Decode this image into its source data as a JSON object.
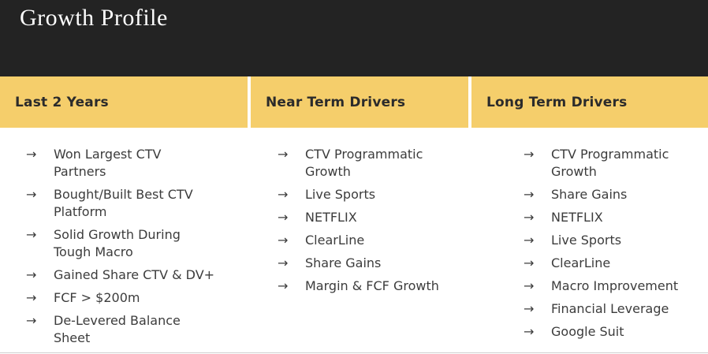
{
  "slide": {
    "title": "Growth Profile"
  },
  "theme": {
    "band_color": "#232323",
    "accent_gold": "#F5CE6B",
    "header_text_color": "#2B2B2B",
    "body_text_color": "#3C3C3C",
    "background": "#FFFFFF",
    "title_text_color": "#FDFDFD"
  },
  "icons": {
    "arrow_right": "→"
  },
  "columns": [
    {
      "header": "Last 2 Years",
      "items": [
        {
          "lines": [
            "Won Largest CTV",
            "Partners"
          ]
        },
        {
          "lines": [
            "Bought/Built Best CTV",
            "Platform"
          ]
        },
        {
          "lines": [
            "Solid Growth During",
            "Tough Macro"
          ]
        },
        {
          "lines": [
            "Gained Share CTV & DV+"
          ]
        },
        {
          "lines": [
            "FCF > $200m"
          ]
        },
        {
          "lines": [
            "De-Levered Balance",
            "Sheet"
          ]
        }
      ]
    },
    {
      "header": "Near Term Drivers",
      "items": [
        {
          "lines": [
            "CTV Programmatic",
            "Growth"
          ]
        },
        {
          "lines": [
            "Live Sports"
          ]
        },
        {
          "lines": [
            "NETFLIX"
          ]
        },
        {
          "lines": [
            "ClearLine"
          ]
        },
        {
          "lines": [
            "Share Gains"
          ]
        },
        {
          "lines": [
            "Margin & FCF Growth"
          ]
        }
      ]
    },
    {
      "header": "Long Term Drivers",
      "items": [
        {
          "lines": [
            "CTV Programmatic",
            "Growth"
          ]
        },
        {
          "lines": [
            "Share Gains"
          ]
        },
        {
          "lines": [
            "NETFLIX"
          ]
        },
        {
          "lines": [
            "Live Sports"
          ]
        },
        {
          "lines": [
            "ClearLine"
          ]
        },
        {
          "lines": [
            "Macro Improvement"
          ]
        },
        {
          "lines": [
            "Financial Leverage"
          ]
        },
        {
          "lines": [
            "Google Suit"
          ]
        }
      ]
    }
  ]
}
